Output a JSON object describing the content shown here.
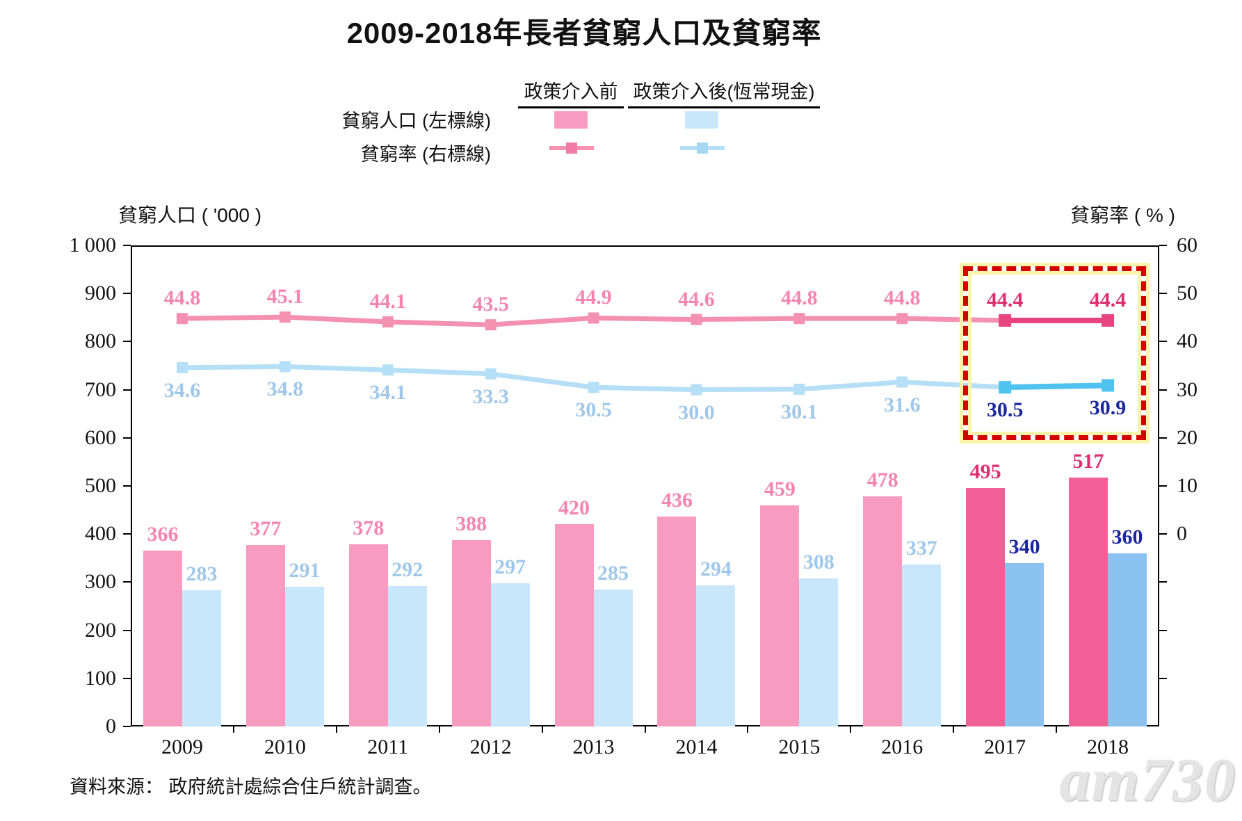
{
  "title": "2009-2018年長者貧窮人口及貧窮率",
  "legend": {
    "col1": "政策介入前",
    "col2": "政策介入後(恆常現金)",
    "row1": "貧窮人口 (左標線)",
    "row2": "貧窮率 (右標線)"
  },
  "axes": {
    "left_title": "貧窮人口 ( '000 )",
    "right_title": "貧窮率 ( % )",
    "left_ticks": [
      "1 000",
      "900",
      "800",
      "700",
      "600",
      "500",
      "400",
      "300",
      "200",
      "100",
      "0"
    ],
    "right_ticks": [
      "60",
      "50",
      "40",
      "30",
      "20",
      "10",
      "0"
    ]
  },
  "source": "資料來源：  政府統計處綜合住戶統計調查。",
  "watermark": "am730",
  "colors": {
    "bar_pink_light": "#F99BC0",
    "bar_pink_dark": "#F25F97",
    "bar_blue_light": "#C9E7FA",
    "bar_blue_dark": "#8CC2F0",
    "line_pink_light": "#F490B0",
    "line_pink_dark": "#E8447F",
    "line_blue_light": "#B5DFF6",
    "line_blue_dark": "#4FC2EF",
    "label_pink_light": "#F585AF",
    "label_pink_dark": "#DE2E70",
    "label_blue_light": "#9EC7EA",
    "label_blue_dark": "#1B26A0",
    "highlight_dash": "#D40000",
    "highlight_glow": "#FAF3A6"
  },
  "chart_data": {
    "type": "bar",
    "subtype": "combo-bar-line-dual-axis",
    "categories": [
      "2009",
      "2010",
      "2011",
      "2012",
      "2013",
      "2014",
      "2015",
      "2016",
      "2017",
      "2018"
    ],
    "series": [
      {
        "name": "貧窮人口 政策介入前",
        "kind": "bar",
        "axis": "left",
        "values": [
          366,
          377,
          378,
          388,
          420,
          436,
          459,
          478,
          495,
          517
        ]
      },
      {
        "name": "貧窮人口 政策介入後(恆常現金)",
        "kind": "bar",
        "axis": "left",
        "values": [
          283,
          291,
          292,
          297,
          285,
          294,
          308,
          337,
          340,
          360
        ]
      },
      {
        "name": "貧窮率 政策介入前",
        "kind": "line",
        "axis": "right",
        "values": [
          44.8,
          45.1,
          44.1,
          43.5,
          44.9,
          44.6,
          44.8,
          44.8,
          44.4,
          44.4
        ]
      },
      {
        "name": "貧窮率 政策介入後(恆常現金)",
        "kind": "line",
        "axis": "right",
        "values": [
          34.6,
          34.8,
          34.1,
          33.3,
          30.5,
          30.0,
          30.1,
          31.6,
          30.5,
          30.9
        ]
      }
    ],
    "left_axis": {
      "label": "貧窮人口 ( '000 )",
      "min": 0,
      "max": 1000,
      "step": 100
    },
    "right_axis": {
      "label": "貧窮率 ( % )",
      "min": 0,
      "max": 60,
      "step": 10,
      "zero_aligned_with_left_value": 400
    },
    "highlight": {
      "categories": [
        "2017",
        "2018"
      ],
      "start_index": 8,
      "style": "red dashed box with yellow glow"
    },
    "grid": false,
    "legend_position": "top"
  }
}
